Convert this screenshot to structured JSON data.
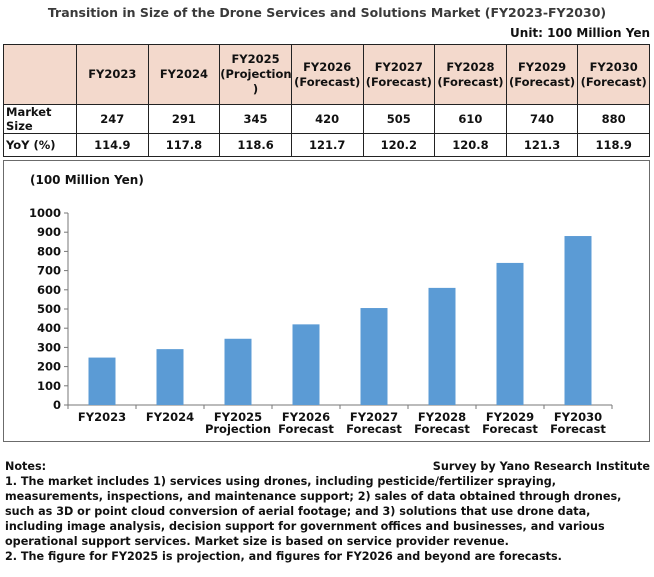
{
  "title": "Transition in Size of the Drone Services and Solutions Market (FY2023-FY2030)",
  "unit": "Unit: 100 Million Yen",
  "table": {
    "headers": [
      "",
      "FY2023",
      "FY2024",
      "FY2025\n(Projection\n)",
      "FY2026\n(Forecast)",
      "FY2027\n(Forecast)",
      "FY2028\n(Forecast)",
      "FY2029\n(Forecast)",
      "FY2030\n(Forecast)"
    ],
    "rows": [
      {
        "label": "Market Size",
        "values": [
          "247",
          "291",
          "345",
          "420",
          "505",
          "610",
          "740",
          "880"
        ]
      },
      {
        "label": "YoY (%)",
        "values": [
          "114.9",
          "117.8",
          "118.6",
          "121.7",
          "120.2",
          "120.8",
          "121.3",
          "118.9"
        ]
      }
    ]
  },
  "chart_data": {
    "type": "bar",
    "ylabel": "(100 Million Yen)",
    "categories": [
      "FY2023",
      "FY2024",
      "FY2025\nProjection",
      "FY2026\nForecast",
      "FY2027\nForecast",
      "FY2028\nForecast",
      "FY2029\nForecast",
      "FY2030\nForecast"
    ],
    "values": [
      247,
      291,
      345,
      420,
      505,
      610,
      740,
      880
    ],
    "ylim": [
      0,
      1000
    ],
    "yticks": [
      0,
      100,
      200,
      300,
      400,
      500,
      600,
      700,
      800,
      900,
      1000
    ],
    "bar_color": "#5b9bd5",
    "grid": false,
    "legend": "none"
  },
  "notes": {
    "heading": "Notes:",
    "source": "Survey by Yano Research Institute",
    "lines": [
      "1. The market includes 1) services using drones, including pesticide/fertilizer spraying,",
      "measurements, inspections, and maintenance support; 2) sales of data obtained through drones,",
      "such as 3D or point cloud conversion of aerial footage; and 3) solutions that use drone data,",
      "including image analysis, decision support for government offices and businesses, and various",
      "operational support services. Market size is based on service provider revenue.",
      "2. The figure for FY2025 is projection, and figures for FY2026 and beyond are forecasts."
    ]
  }
}
